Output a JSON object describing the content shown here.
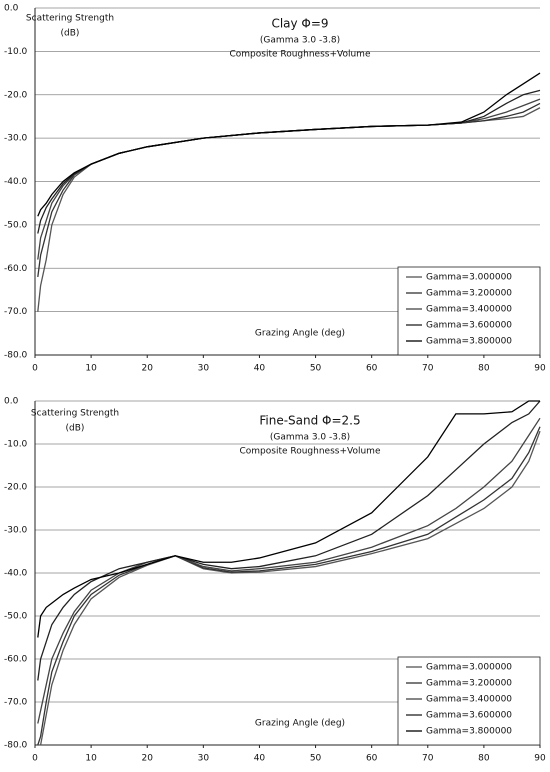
{
  "chart_data": [
    {
      "type": "line",
      "title": "Clay Φ=9",
      "subtitle": "(Gamma 3.0 -3.8)",
      "note": "Composite Roughness+Volume",
      "ylabel": [
        "Scattering Strength",
        "(dB)"
      ],
      "xlabel": "Grazing Angle (deg)",
      "x": [
        0.5,
        1,
        2,
        3,
        5,
        7,
        10,
        15,
        20,
        30,
        40,
        50,
        60,
        70,
        76,
        80,
        84,
        87,
        90
      ],
      "series": [
        {
          "name": "Gamma=3.000000",
          "color": "#555555",
          "values": [
            -70,
            -64,
            -58,
            -50,
            -43,
            -39,
            -36,
            -33.5,
            -32,
            -30,
            -28.8,
            -28,
            -27.3,
            -27,
            -26.5,
            -26,
            -25.5,
            -25,
            -23
          ]
        },
        {
          "name": "Gamma=3.200000",
          "color": "#333333",
          "values": [
            -62,
            -57,
            -52,
            -47,
            -42,
            -38.5,
            -36,
            -33.5,
            -32,
            -30,
            -28.8,
            -28,
            -27.3,
            -27,
            -26.5,
            -26,
            -25,
            -24,
            -22
          ]
        },
        {
          "name": "Gamma=3.400000",
          "color": "#444444",
          "values": [
            -58,
            -53,
            -49,
            -45,
            -41,
            -38.3,
            -36,
            -33.5,
            -32,
            -30,
            -28.8,
            -28,
            -27.3,
            -27,
            -26.5,
            -25.5,
            -24,
            -22.5,
            -21
          ]
        },
        {
          "name": "Gamma=3.600000",
          "color": "#222222",
          "values": [
            -52,
            -49,
            -46,
            -44,
            -40.5,
            -38.2,
            -36,
            -33.5,
            -32,
            -30,
            -28.8,
            -28,
            -27.3,
            -27,
            -26.5,
            -25,
            -22,
            -20,
            -19
          ]
        },
        {
          "name": "Gamma=3.800000",
          "color": "#000000",
          "values": [
            -48,
            -46.5,
            -45,
            -43,
            -40,
            -38,
            -36,
            -33.5,
            -32,
            -30,
            -28.8,
            -28,
            -27.3,
            -27,
            -26.3,
            -24,
            -20,
            -17.5,
            -15
          ]
        }
      ],
      "xlim": [
        0,
        90
      ],
      "xticks": [
        0,
        10,
        20,
        30,
        40,
        50,
        60,
        70,
        80,
        90
      ],
      "ylim": [
        -80,
        0
      ],
      "yticks": [
        {
          "value": 0,
          "label": "0.0"
        },
        {
          "value": -10,
          "label": "-10.0"
        },
        {
          "value": -20,
          "label": "-20.0"
        },
        {
          "value": -30,
          "label": "-30.0"
        },
        {
          "value": -40,
          "label": "-40.0"
        },
        {
          "value": -50,
          "label": "-50.0"
        },
        {
          "value": -60,
          "label": "-60.0"
        },
        {
          "value": -70,
          "label": "-70.0"
        },
        {
          "value": -80,
          "label": "-80.0"
        }
      ],
      "grid": true,
      "legend": "lower right"
    },
    {
      "type": "line",
      "title": "Fine-Sand Φ=2.5",
      "subtitle": "(Gamma 3.0 -3.8)",
      "note": "Composite Roughness+Volume",
      "ylabel": [
        "Scattering Strength",
        "(dB)"
      ],
      "xlabel": "Grazing Angle (deg)",
      "x": [
        0.5,
        1,
        2,
        3,
        5,
        7,
        10,
        15,
        20,
        25,
        30,
        35,
        40,
        50,
        60,
        70,
        75,
        80,
        85,
        88,
        90
      ],
      "series": [
        {
          "name": "Gamma=3.000000",
          "color": "#555555",
          "values": [
            -80,
            -80,
            -73,
            -66,
            -58,
            -52,
            -46,
            -41,
            -38.2,
            -36,
            -39,
            -40,
            -39.8,
            -38.5,
            -35.5,
            -32,
            -28.5,
            -25,
            -20,
            -14,
            -7
          ]
        },
        {
          "name": "Gamma=3.200000",
          "color": "#333333",
          "values": [
            -80,
            -78,
            -70,
            -63,
            -56,
            -50,
            -45,
            -40.5,
            -38,
            -36,
            -38.8,
            -39.8,
            -39.5,
            -38,
            -35,
            -31,
            -27,
            -23,
            -18,
            -12,
            -6
          ]
        },
        {
          "name": "Gamma=3.400000",
          "color": "#444444",
          "values": [
            -75,
            -72,
            -66,
            -60,
            -54,
            -49,
            -44,
            -40,
            -37.5,
            -36,
            -38.5,
            -39.5,
            -39,
            -37.5,
            -34,
            -29,
            -25,
            -20,
            -14,
            -8,
            -4
          ]
        },
        {
          "name": "Gamma=3.600000",
          "color": "#222222",
          "values": [
            -65,
            -60,
            -56,
            -52,
            -48,
            -45,
            -42,
            -39,
            -37.5,
            -36,
            -38,
            -39,
            -38.5,
            -36,
            -31,
            -22,
            -16,
            -10,
            -5,
            -3,
            0
          ]
        },
        {
          "name": "Gamma=3.800000",
          "color": "#000000",
          "values": [
            -55,
            -50,
            -48,
            -47,
            -45,
            -43.5,
            -41.5,
            -40,
            -38,
            -36,
            -37.5,
            -37.5,
            -36.5,
            -33,
            -26,
            -13,
            -3,
            -3,
            -2.5,
            0,
            0
          ]
        }
      ],
      "xlim": [
        0,
        90
      ],
      "xticks": [
        0,
        10,
        20,
        30,
        40,
        50,
        60,
        70,
        80,
        90
      ],
      "ylim": [
        -80,
        0
      ],
      "yticks": [
        {
          "value": 0,
          "label": "0.0"
        },
        {
          "value": -10,
          "label": "-10.0"
        },
        {
          "value": -20,
          "label": "-20.0"
        },
        {
          "value": -30,
          "label": "-30.0"
        },
        {
          "value": -40,
          "label": "-40.0"
        },
        {
          "value": -50,
          "label": "-50.0"
        },
        {
          "value": -60,
          "label": "-60.0"
        },
        {
          "value": -70,
          "label": "-70.0"
        },
        {
          "value": -80,
          "label": "-80.0"
        }
      ],
      "grid": true,
      "legend": "lower right"
    }
  ]
}
